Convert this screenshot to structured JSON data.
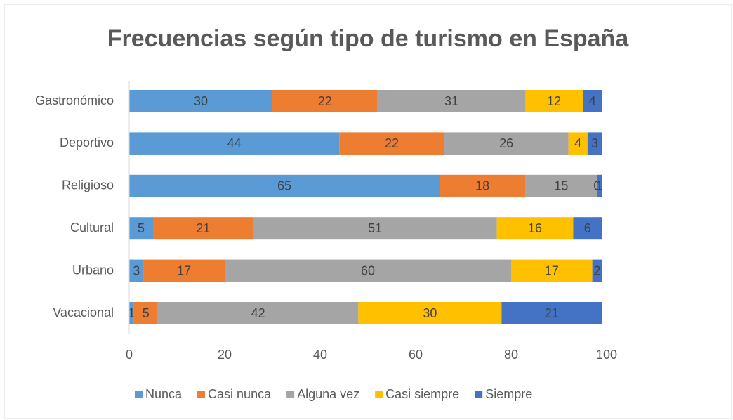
{
  "chart_data": {
    "type": "stacked_bar_horizontal",
    "title": "Frecuencias según tipo de turismo en España",
    "categories": [
      "Gastronómico",
      "Deportivo",
      "Religioso",
      "Cultural",
      "Urbano",
      "Vacacional"
    ],
    "series": [
      {
        "name": "Nunca",
        "color": "#5b9bd5",
        "values": [
          30,
          44,
          65,
          5,
          3,
          1
        ]
      },
      {
        "name": "Casi nunca",
        "color": "#ed7d31",
        "values": [
          22,
          22,
          18,
          21,
          17,
          5
        ]
      },
      {
        "name": "Alguna vez",
        "color": "#a5a5a5",
        "values": [
          31,
          26,
          15,
          51,
          60,
          42
        ]
      },
      {
        "name": "Casi siempre",
        "color": "#ffc000",
        "values": [
          12,
          4,
          0,
          16,
          17,
          30
        ]
      },
      {
        "name": "Siempre",
        "color": "#4472c4",
        "values": [
          4,
          3,
          1,
          6,
          2,
          21
        ]
      }
    ],
    "xlim": [
      0,
      100
    ],
    "xticks": [
      0,
      20,
      40,
      60,
      80,
      100
    ],
    "grid": false,
    "legend": "bottom"
  }
}
